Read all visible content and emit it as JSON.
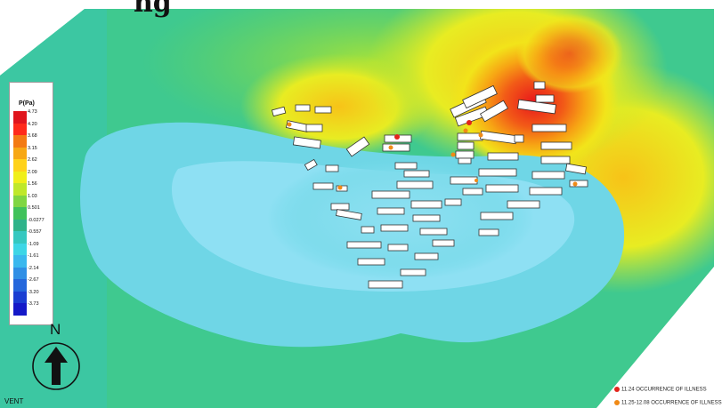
{
  "title": "ng",
  "legend": {
    "title": "P(Pa)",
    "ticks": [
      "4.73",
      "4.20",
      "3.68",
      "3.15",
      "2.62",
      "2.09",
      "1.56",
      "1.03",
      "0.501",
      "-0.0277",
      "-0.557",
      "-1.09",
      "-1.61",
      "-2.14",
      "-2.67",
      "-3.20",
      "-3.73"
    ],
    "colors": [
      "#e0151d",
      "#ff2a1a",
      "#f37a13",
      "#f7a815",
      "#ffd21a",
      "#f0ef1a",
      "#bfe82a",
      "#7fd642",
      "#40c25a",
      "#2fb38a",
      "#35c8c0",
      "#3dd6e6",
      "#3ab8ee",
      "#2f8fe5",
      "#2467dc",
      "#1a3ed2",
      "#1419c8"
    ]
  },
  "north_label": "N",
  "corner_label": "VENT",
  "key": [
    {
      "label": "11.24 OCCURRENCE OF ILLNESS",
      "color": "#e3241b"
    },
    {
      "label": "11.25-12.08 OCCURRENCE OF ILLNESS",
      "color": "#f08a16"
    }
  ],
  "colors": {
    "low": "#7ad8ef",
    "mid": "#4fd6c2",
    "high": "#e8181d",
    "ambient": "#3ec98c"
  },
  "icons": [
    "north-arrow-icon",
    "compass-circle-icon"
  ]
}
